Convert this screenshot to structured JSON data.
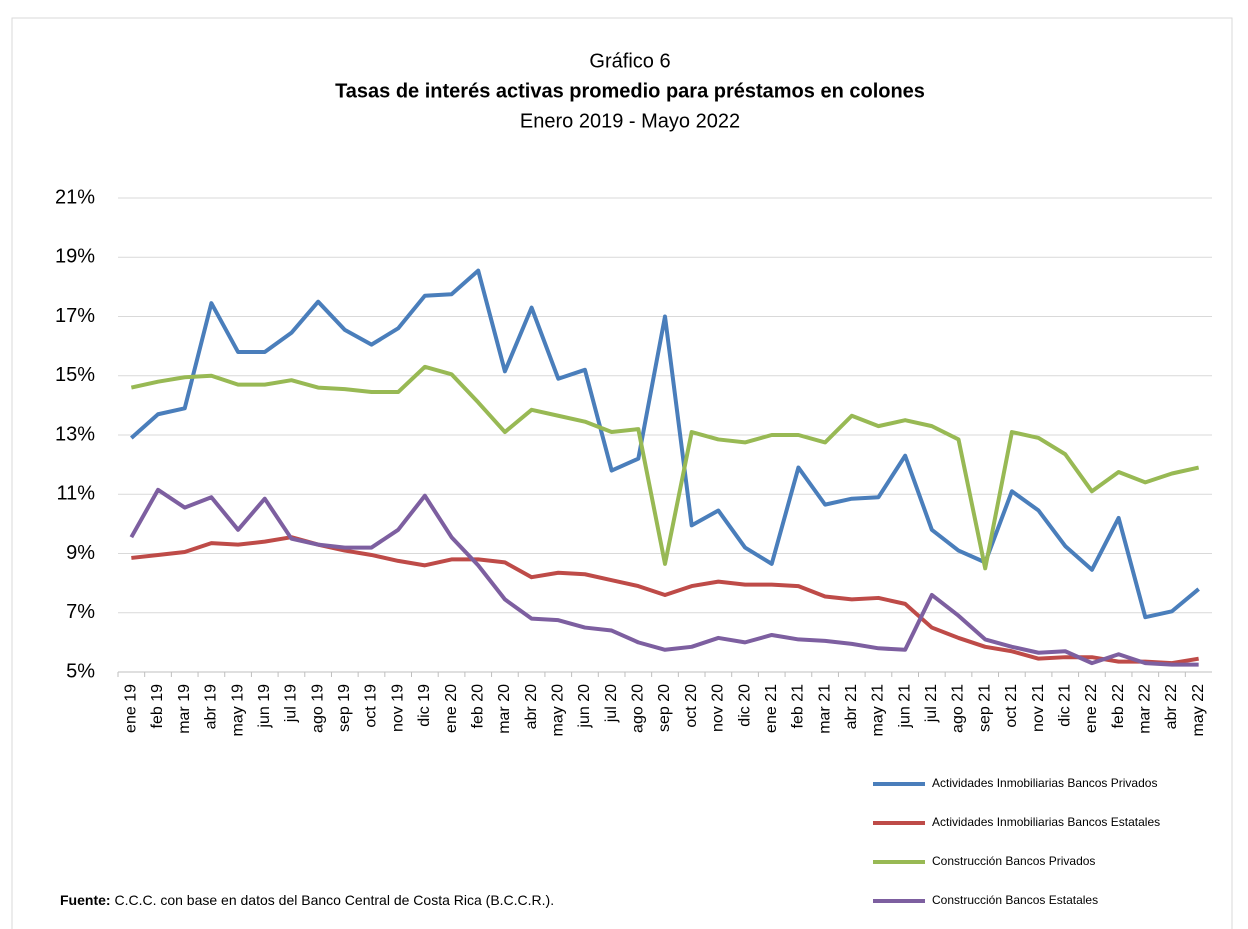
{
  "chart_data": {
    "type": "line",
    "title": "Gráfico 6",
    "subtitle": "Tasas de interés activas promedio para préstamos en colones",
    "period": "Enero 2019 - Mayo 2022",
    "source_label": "Fuente:",
    "source_text": "C.C.C. con base en datos del Banco Central de Costa Rica (B.C.C.R.).",
    "categories": [
      "ene 19",
      "feb 19",
      "mar 19",
      "abr 19",
      "may 19",
      "jun 19",
      "jul 19",
      "ago 19",
      "sep 19",
      "oct 19",
      "nov 19",
      "dic 19",
      "ene 20",
      "feb 20",
      "mar 20",
      "abr 20",
      "may 20",
      "jun 20",
      "jul 20",
      "ago 20",
      "sep 20",
      "oct 20",
      "nov 20",
      "dic 20",
      "ene 21",
      "feb 21",
      "mar 21",
      "abr 21",
      "may 21",
      "jun 21",
      "jul 21",
      "ago 21",
      "sep 21",
      "oct 21",
      "nov 21",
      "dic 21",
      "ene 22",
      "feb 22",
      "mar 22",
      "abr 22",
      "may 22"
    ],
    "series": [
      {
        "name": "Actividades Inmobiliarias Bancos Privados",
        "color": "#4a7ebb",
        "values": [
          12.9,
          13.7,
          13.9,
          17.45,
          15.8,
          15.8,
          16.45,
          17.5,
          16.55,
          16.05,
          16.6,
          17.7,
          17.75,
          18.55,
          15.15,
          17.3,
          14.9,
          15.2,
          11.8,
          12.2,
          17.0,
          9.95,
          10.45,
          9.2,
          8.65,
          11.9,
          10.65,
          10.85,
          10.9,
          12.3,
          9.8,
          9.1,
          8.7,
          11.1,
          10.45,
          9.25,
          8.45,
          10.2,
          6.85,
          7.05,
          7.8
        ]
      },
      {
        "name": "Actividades Inmobiliarias Bancos Estatales",
        "color": "#be4b48",
        "values": [
          8.85,
          8.95,
          9.05,
          9.35,
          9.3,
          9.4,
          9.55,
          9.3,
          9.1,
          8.95,
          8.75,
          8.6,
          8.8,
          8.8,
          8.7,
          8.2,
          8.35,
          8.3,
          8.1,
          7.9,
          7.6,
          7.9,
          8.05,
          7.95,
          7.95,
          7.9,
          7.55,
          7.45,
          7.5,
          7.3,
          6.5,
          6.15,
          5.85,
          5.7,
          5.45,
          5.5,
          5.5,
          5.35,
          5.35,
          5.3,
          5.45
        ]
      },
      {
        "name": "Construcción Bancos Privados",
        "color": "#98b954",
        "values": [
          14.6,
          14.8,
          14.95,
          15.0,
          14.7,
          14.7,
          14.85,
          14.6,
          14.55,
          14.45,
          14.45,
          15.3,
          15.05,
          14.1,
          13.1,
          13.85,
          13.65,
          13.45,
          13.1,
          13.2,
          8.65,
          13.1,
          12.85,
          12.75,
          13.0,
          13.0,
          12.75,
          13.65,
          13.3,
          13.5,
          13.3,
          12.85,
          8.5,
          13.1,
          12.9,
          12.35,
          11.1,
          11.75,
          11.4,
          11.7,
          11.9
        ]
      },
      {
        "name": "Construcción Bancos Estatales",
        "color": "#7d5fa0",
        "values": [
          9.55,
          11.15,
          10.55,
          10.9,
          9.8,
          10.85,
          9.5,
          9.3,
          9.2,
          9.2,
          9.8,
          10.95,
          9.55,
          8.6,
          7.45,
          6.8,
          6.75,
          6.5,
          6.4,
          6.0,
          5.75,
          5.85,
          6.15,
          6.0,
          6.25,
          6.1,
          6.05,
          5.95,
          5.8,
          5.75,
          7.6,
          6.9,
          6.1,
          5.85,
          5.65,
          5.7,
          5.3,
          5.6,
          5.3,
          5.25,
          5.25
        ]
      }
    ],
    "ylim": [
      5,
      21
    ],
    "yticks": [
      {
        "value": 5,
        "label": "5%"
      },
      {
        "value": 7,
        "label": "7%"
      },
      {
        "value": 9,
        "label": "9%"
      },
      {
        "value": 11,
        "label": "11%"
      },
      {
        "value": 13,
        "label": "13%"
      },
      {
        "value": 15,
        "label": "15%"
      },
      {
        "value": 17,
        "label": "17%"
      },
      {
        "value": 19,
        "label": "19%"
      },
      {
        "value": 21,
        "label": "21%"
      }
    ],
    "grid": true,
    "legend": "bottom-right"
  }
}
